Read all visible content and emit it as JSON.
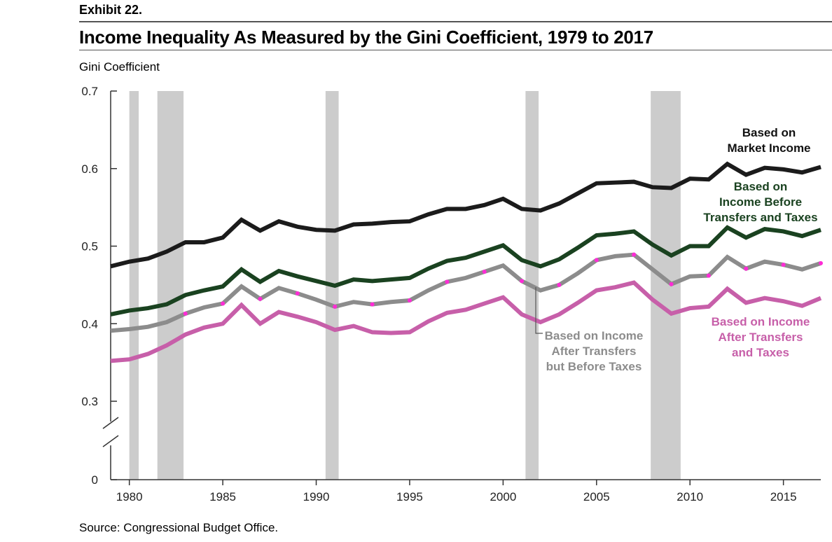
{
  "header": {
    "exhibit": "Exhibit 22.",
    "title": "Income Inequality As Measured by the Gini Coefficient, 1979 to 2017"
  },
  "footer": {
    "source": "Source: Congressional Budget Office."
  },
  "chart_data": {
    "type": "line",
    "title": "Income Inequality As Measured by the Gini Coefficient, 1979 to 2017",
    "ylabel": "Gini Coefficient",
    "xlabel": "",
    "xlim": [
      1979,
      2017
    ],
    "ylim": [
      0.25,
      0.7
    ],
    "y_axis_break": true,
    "y_ticks": [
      {
        "value": 0.7,
        "label": "0.7"
      },
      {
        "value": 0.6,
        "label": "0.6"
      },
      {
        "value": 0.5,
        "label": "0.5"
      },
      {
        "value": 0.4,
        "label": "0.4"
      },
      {
        "value": 0.3,
        "label": "0.3"
      },
      {
        "value": 0,
        "label": "0"
      }
    ],
    "x_ticks": [
      1980,
      1985,
      1990,
      1995,
      2000,
      2005,
      2010,
      2015
    ],
    "grid": false,
    "recessions": [
      [
        1980.0,
        1980.5
      ],
      [
        1981.5,
        1982.9
      ],
      [
        1990.5,
        1991.2
      ],
      [
        2001.2,
        2001.9
      ],
      [
        2007.9,
        2009.5
      ]
    ],
    "x": [
      1979,
      1980,
      1981,
      1982,
      1983,
      1984,
      1985,
      1986,
      1987,
      1988,
      1989,
      1990,
      1991,
      1992,
      1993,
      1994,
      1995,
      1996,
      1997,
      1998,
      1999,
      2000,
      2001,
      2002,
      2003,
      2004,
      2005,
      2006,
      2007,
      2008,
      2009,
      2010,
      2011,
      2012,
      2013,
      2014,
      2015,
      2016,
      2017
    ],
    "series": [
      {
        "name": "Based on Market Income",
        "label_lines": [
          "Based on",
          "Market Income"
        ],
        "color": "#1b1b1b",
        "values": [
          0.474,
          0.48,
          0.484,
          0.493,
          0.505,
          0.505,
          0.511,
          0.534,
          0.52,
          0.532,
          0.525,
          0.521,
          0.52,
          0.528,
          0.529,
          0.531,
          0.532,
          0.541,
          0.548,
          0.548,
          0.553,
          0.561,
          0.548,
          0.546,
          0.555,
          0.568,
          0.581,
          0.582,
          0.583,
          0.576,
          0.575,
          0.587,
          0.586,
          0.606,
          0.592,
          0.601,
          0.599,
          0.595,
          0.602
        ]
      },
      {
        "name": "Based on Income Before Transfers and Taxes",
        "label_lines": [
          "Based on",
          "Income Before",
          "Transfers and Taxes"
        ],
        "color": "#1a4220",
        "values": [
          0.412,
          0.417,
          0.42,
          0.425,
          0.437,
          0.443,
          0.448,
          0.47,
          0.454,
          0.468,
          0.461,
          0.455,
          0.449,
          0.457,
          0.455,
          0.457,
          0.459,
          0.471,
          0.481,
          0.485,
          0.493,
          0.501,
          0.482,
          0.474,
          0.483,
          0.498,
          0.514,
          0.516,
          0.519,
          0.502,
          0.488,
          0.5,
          0.5,
          0.524,
          0.511,
          0.522,
          0.519,
          0.513,
          0.521
        ]
      },
      {
        "name": "Based on Income After Transfers but Before Taxes",
        "label_lines": [
          "Based on Income",
          "After Transfers",
          "but Before Taxes"
        ],
        "color": "#8c8c8c",
        "values": [
          0.391,
          0.393,
          0.396,
          0.402,
          0.413,
          0.421,
          0.426,
          0.448,
          0.432,
          0.446,
          0.439,
          0.431,
          0.422,
          0.428,
          0.425,
          0.428,
          0.43,
          0.443,
          0.454,
          0.459,
          0.467,
          0.475,
          0.455,
          0.443,
          0.45,
          0.465,
          0.482,
          0.487,
          0.489,
          0.47,
          0.451,
          0.461,
          0.462,
          0.486,
          0.471,
          0.48,
          0.476,
          0.47,
          0.478
        ]
      },
      {
        "name": "Based on Income After Transfers and Taxes",
        "label_lines": [
          "Based on Income",
          "After Transfers",
          "and Taxes"
        ],
        "color": "#c75fa9",
        "values": [
          0.352,
          0.354,
          0.361,
          0.372,
          0.386,
          0.395,
          0.4,
          0.424,
          0.4,
          0.415,
          0.409,
          0.402,
          0.392,
          0.397,
          0.389,
          0.388,
          0.389,
          0.403,
          0.414,
          0.418,
          0.426,
          0.434,
          0.412,
          0.402,
          0.412,
          0.427,
          0.443,
          0.447,
          0.453,
          0.431,
          0.413,
          0.42,
          0.422,
          0.445,
          0.427,
          0.433,
          0.429,
          0.423,
          0.433
        ]
      }
    ]
  }
}
